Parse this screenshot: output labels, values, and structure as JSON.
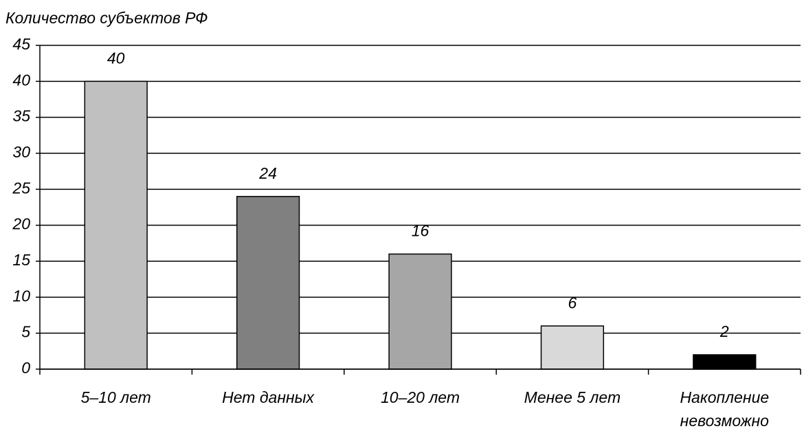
{
  "chart_data": {
    "type": "bar",
    "y_label": "Количество субъектов РФ",
    "categories": [
      "5–10 лет",
      "Нет данных",
      "10–20 лет",
      "Менее 5 лет",
      "Накопление невозможно"
    ],
    "values": [
      40,
      24,
      16,
      6,
      2
    ],
    "colors": [
      "#c0c0c0",
      "#808080",
      "#a6a6a6",
      "#d9d9d9",
      "#000000"
    ],
    "ylim": [
      0,
      45
    ],
    "yticks": [
      0,
      5,
      10,
      15,
      20,
      25,
      30,
      35,
      40,
      45
    ],
    "grid": true
  }
}
